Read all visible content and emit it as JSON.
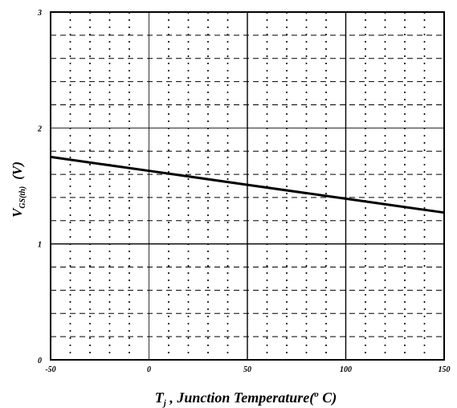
{
  "chart_data": {
    "type": "line",
    "xlabel": {
      "main": "T",
      "sub": "j",
      "rest": " , Junction Temperature(",
      "sup": "o",
      "unit": " C)"
    },
    "ylabel": {
      "main": "V",
      "sub": "GS(th)",
      "unit": "(V)"
    },
    "xlim": [
      -50,
      150
    ],
    "ylim": [
      0,
      3
    ],
    "xticks": [
      "-50",
      "0",
      "50",
      "100",
      "150"
    ],
    "yticks": [
      "0",
      "1",
      "2",
      "3"
    ],
    "x_tick_values": [
      -50,
      0,
      50,
      100,
      150
    ],
    "y_tick_values": [
      0,
      1,
      2,
      3
    ],
    "grid": true,
    "minor_grid": true,
    "series": [
      {
        "x": [
          -50,
          0,
          50,
          100,
          150
        ],
        "y": [
          1.75,
          1.63,
          1.51,
          1.39,
          1.27
        ]
      }
    ],
    "colors": {
      "line": "#000000",
      "grid": "#000000"
    }
  }
}
